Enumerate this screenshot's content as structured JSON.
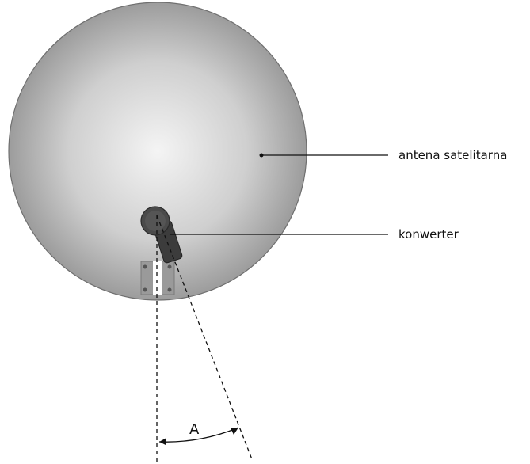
{
  "labels": {
    "dish": "antena satelitarna",
    "converter": "konwerter",
    "angle": "A"
  },
  "colors": {
    "dish_center": "#f2f2f2",
    "dish_edge": "#9c9c9c",
    "dish_outline": "#6f6f6f",
    "converter": "#3c3c3c",
    "bracket": "#9a9a9a",
    "lines": "#111111"
  }
}
